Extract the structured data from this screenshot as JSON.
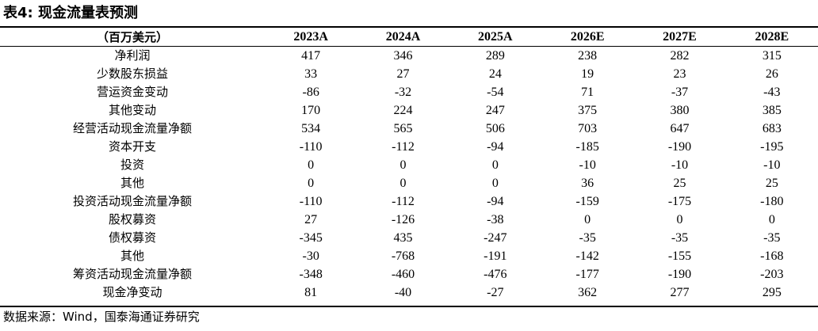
{
  "title": "表4:  现金流量表预测",
  "table": {
    "header_label": "（百万美元）",
    "years": [
      "2023A",
      "2024A",
      "2025A",
      "2026E",
      "2027E",
      "2028E"
    ],
    "rows": [
      {
        "label": "净利润",
        "values": [
          "417",
          "346",
          "289",
          "238",
          "282",
          "315"
        ]
      },
      {
        "label": "少数股东损益",
        "values": [
          "33",
          "27",
          "24",
          "19",
          "23",
          "26"
        ]
      },
      {
        "label": "营运资金变动",
        "values": [
          "-86",
          "-32",
          "-54",
          "71",
          "-37",
          "-43"
        ]
      },
      {
        "label": "其他变动",
        "values": [
          "170",
          "224",
          "247",
          "375",
          "380",
          "385"
        ]
      },
      {
        "label": "经营活动现金流量净额",
        "values": [
          "534",
          "565",
          "506",
          "703",
          "647",
          "683"
        ]
      },
      {
        "label": "资本开支",
        "values": [
          "-110",
          "-112",
          "-94",
          "-185",
          "-190",
          "-195"
        ]
      },
      {
        "label": "投资",
        "values": [
          "0",
          "0",
          "0",
          "-10",
          "-10",
          "-10"
        ]
      },
      {
        "label": "其他",
        "values": [
          "0",
          "0",
          "0",
          "36",
          "25",
          "25"
        ]
      },
      {
        "label": "投资活动现金流量净额",
        "values": [
          "-110",
          "-112",
          "-94",
          "-159",
          "-175",
          "-180"
        ]
      },
      {
        "label": "股权募资",
        "values": [
          "27",
          "-126",
          "-38",
          "0",
          "0",
          "0"
        ]
      },
      {
        "label": "债权募资",
        "values": [
          "-345",
          "435",
          "-247",
          "-35",
          "-35",
          "-35"
        ]
      },
      {
        "label": "其他",
        "values": [
          "-30",
          "-768",
          "-191",
          "-142",
          "-155",
          "-168"
        ]
      },
      {
        "label": "筹资活动现金流量净额",
        "values": [
          "-348",
          "-460",
          "-476",
          "-177",
          "-190",
          "-203"
        ]
      },
      {
        "label": "现金净变动",
        "values": [
          "81",
          "-40",
          "-27",
          "362",
          "277",
          "295"
        ]
      }
    ]
  },
  "source": "数据来源：Wind，国泰海通证券研究"
}
